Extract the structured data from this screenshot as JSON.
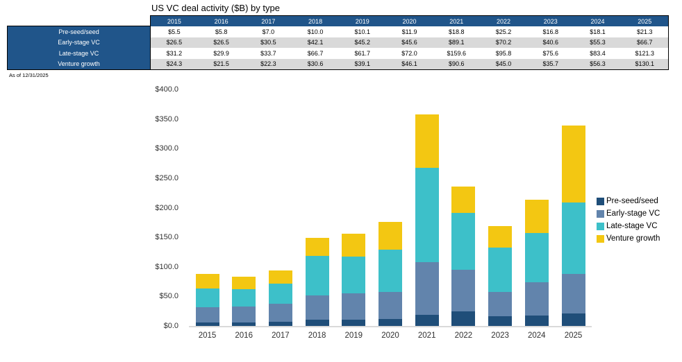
{
  "table": {
    "title": "US VC deal activity ($B) by type",
    "as_of": "As of 12/31/2025",
    "header_bg": "#20558A",
    "stripe_color": "#D9D9D9",
    "years": [
      "2015",
      "2016",
      "2017",
      "2018",
      "2019",
      "2020",
      "2021",
      "2022",
      "2023",
      "2024",
      "2025"
    ],
    "rows": [
      {
        "label": "Pre-seed/seed",
        "values": [
          "$5.5",
          "$5.8",
          "$7.0",
          "$10.0",
          "$10.1",
          "$11.9",
          "$18.8",
          "$25.2",
          "$16.8",
          "$18.1",
          "$21.3"
        ]
      },
      {
        "label": "Early-stage VC",
        "values": [
          "$26.5",
          "$26.5",
          "$30.5",
          "$42.1",
          "$45.2",
          "$45.6",
          "$89.1",
          "$70.2",
          "$40.6",
          "$55.3",
          "$66.7"
        ]
      },
      {
        "label": "Late-stage VC",
        "values": [
          "$31.2",
          "$29.9",
          "$33.7",
          "$66.7",
          "$61.7",
          "$72.0",
          "$159.6",
          "$95.8",
          "$75.6",
          "$83.4",
          "$121.3"
        ]
      },
      {
        "label": "Venture growth",
        "values": [
          "$24.3",
          "$21.5",
          "$22.3",
          "$30.6",
          "$39.1",
          "$46.1",
          "$90.6",
          "$45.0",
          "$35.7",
          "$56.3",
          "$130.1"
        ]
      }
    ]
  },
  "chart_data": {
    "type": "bar",
    "stacked": true,
    "title": "US VC deal activity ($B) by type",
    "categories": [
      "2015",
      "2016",
      "2017",
      "2018",
      "2019",
      "2020",
      "2021",
      "2022",
      "2023",
      "2024",
      "2025"
    ],
    "series": [
      {
        "name": "Pre-seed/seed",
        "color": "#1F4E79",
        "values": [
          5.5,
          5.8,
          7.0,
          10.0,
          10.1,
          11.9,
          18.8,
          25.2,
          16.8,
          18.1,
          21.3
        ]
      },
      {
        "name": "Early-stage VC",
        "color": "#6284AC",
        "values": [
          26.5,
          26.5,
          30.5,
          42.1,
          45.2,
          45.6,
          89.1,
          70.2,
          40.6,
          55.3,
          66.7
        ]
      },
      {
        "name": "Late-stage VC",
        "color": "#3DC0C9",
        "values": [
          31.2,
          29.9,
          33.7,
          66.7,
          61.7,
          72.0,
          159.6,
          95.8,
          75.6,
          83.4,
          121.3
        ]
      },
      {
        "name": "Venture growth",
        "color": "#F3C712",
        "values": [
          24.3,
          21.5,
          22.3,
          30.6,
          39.1,
          46.1,
          90.6,
          45.0,
          35.7,
          56.3,
          130.1
        ]
      }
    ],
    "xlabel": "",
    "ylabel": "",
    "ylim": [
      0,
      400
    ],
    "y_tick_step": 50,
    "y_tick_labels": [
      "$0.0",
      "$50.0",
      "$100.0",
      "$150.0",
      "$200.0",
      "$250.0",
      "$300.0",
      "$350.0",
      "$400.0"
    ],
    "grid": false,
    "legend_position": "right"
  }
}
